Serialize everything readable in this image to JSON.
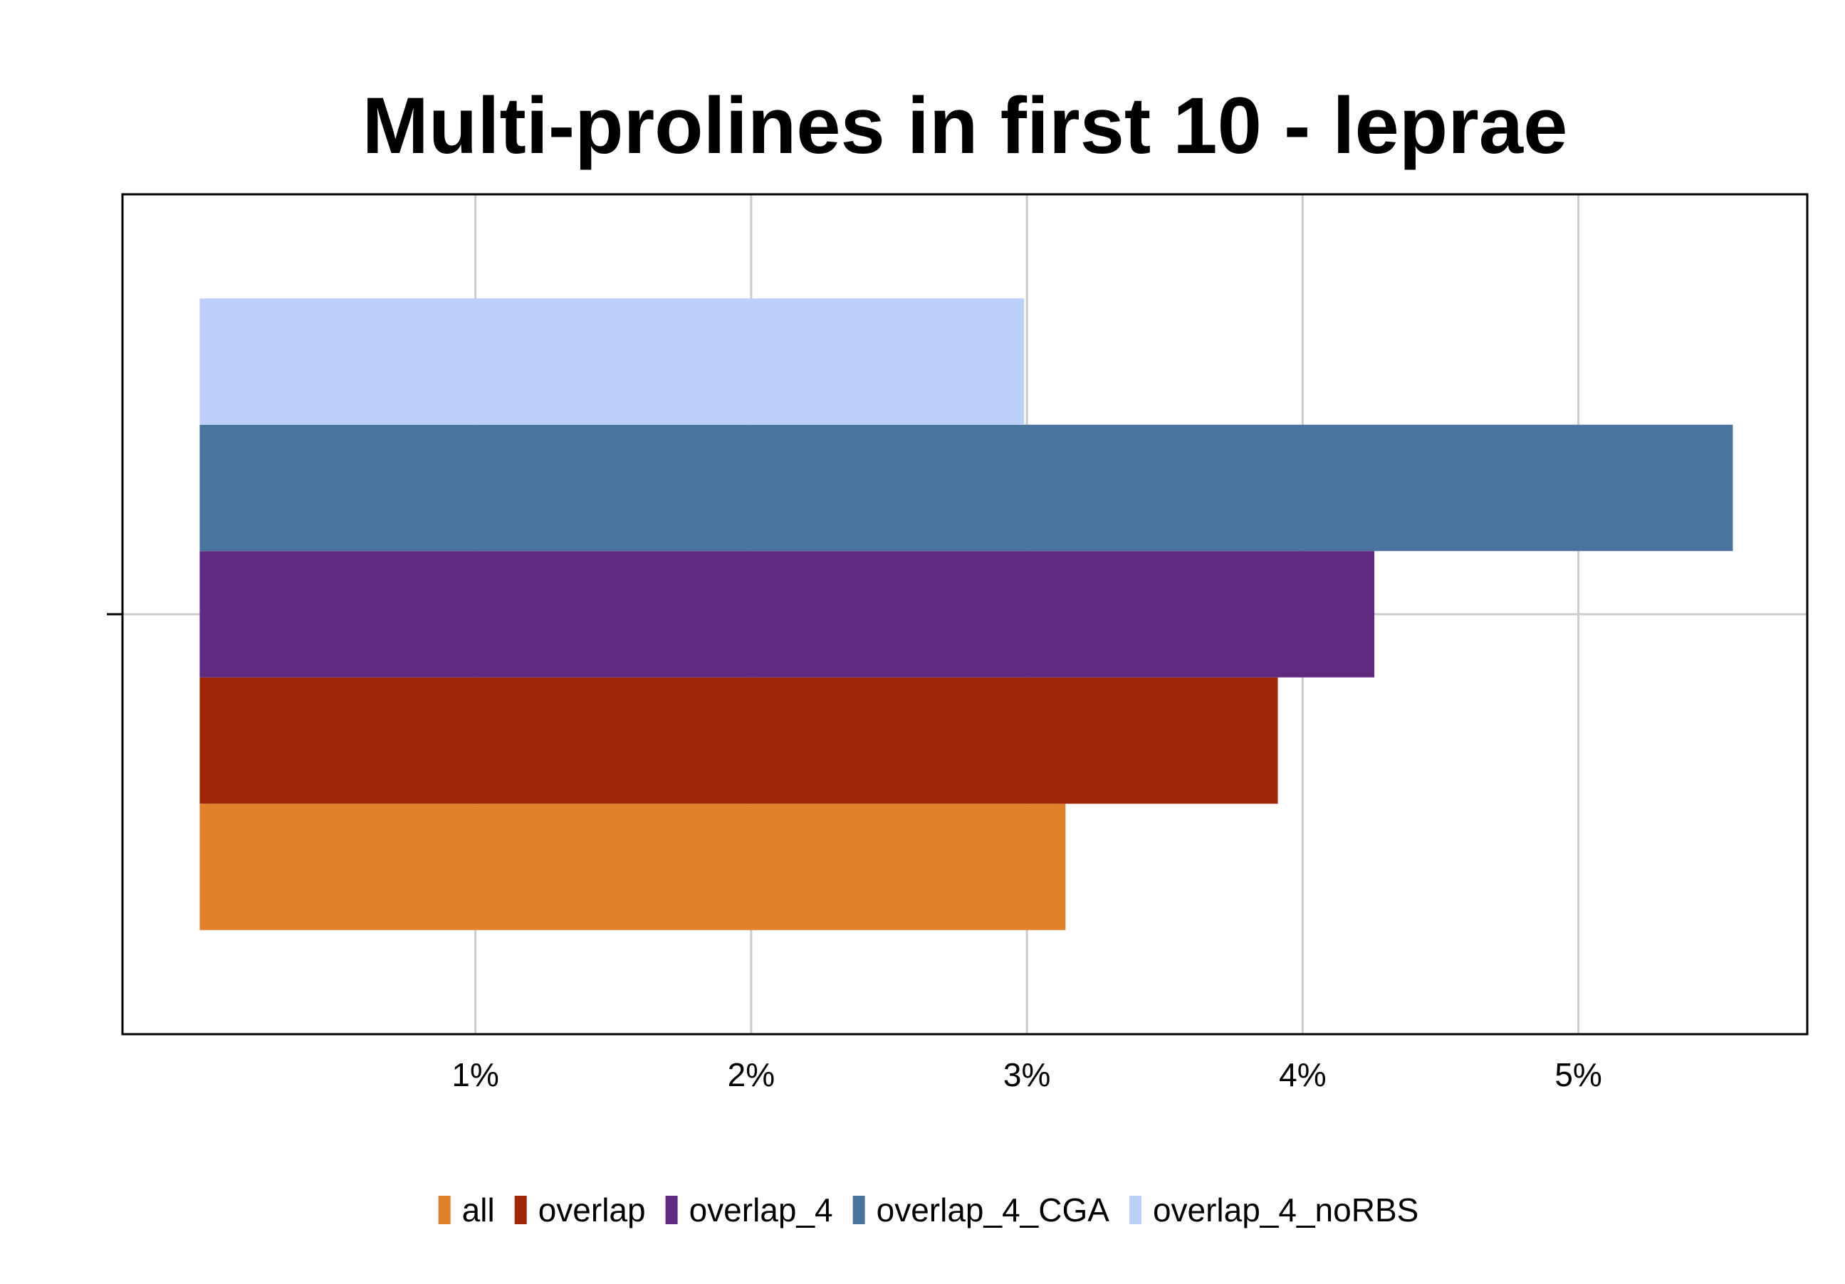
{
  "chart_data": {
    "type": "bar",
    "orientation": "horizontal",
    "title": "Multi-prolines in first 10 - leprae",
    "xlabel": "",
    "ylabel": "",
    "x_ticks": [
      "1%",
      "2%",
      "3%",
      "4%",
      "5%"
    ],
    "x_tick_values": [
      1,
      2,
      3,
      4,
      5
    ],
    "categories": [
      ""
    ],
    "xlim": [
      -0.28,
      5.83
    ],
    "grid": true,
    "legend_position": "bottom",
    "series": [
      {
        "name": "all",
        "values": [
          3.14
        ],
        "color": "#E2812B"
      },
      {
        "name": "overlap",
        "values": [
          3.91
        ],
        "color": "#A0280A"
      },
      {
        "name": "overlap_4",
        "values": [
          4.26
        ],
        "color": "#5F2A80"
      },
      {
        "name": "overlap_4_CGA",
        "values": [
          5.56
        ],
        "color": "#4A749D"
      },
      {
        "name": "overlap_4_noRBS",
        "values": [
          2.99
        ],
        "color": "#BDD0FA"
      }
    ]
  }
}
